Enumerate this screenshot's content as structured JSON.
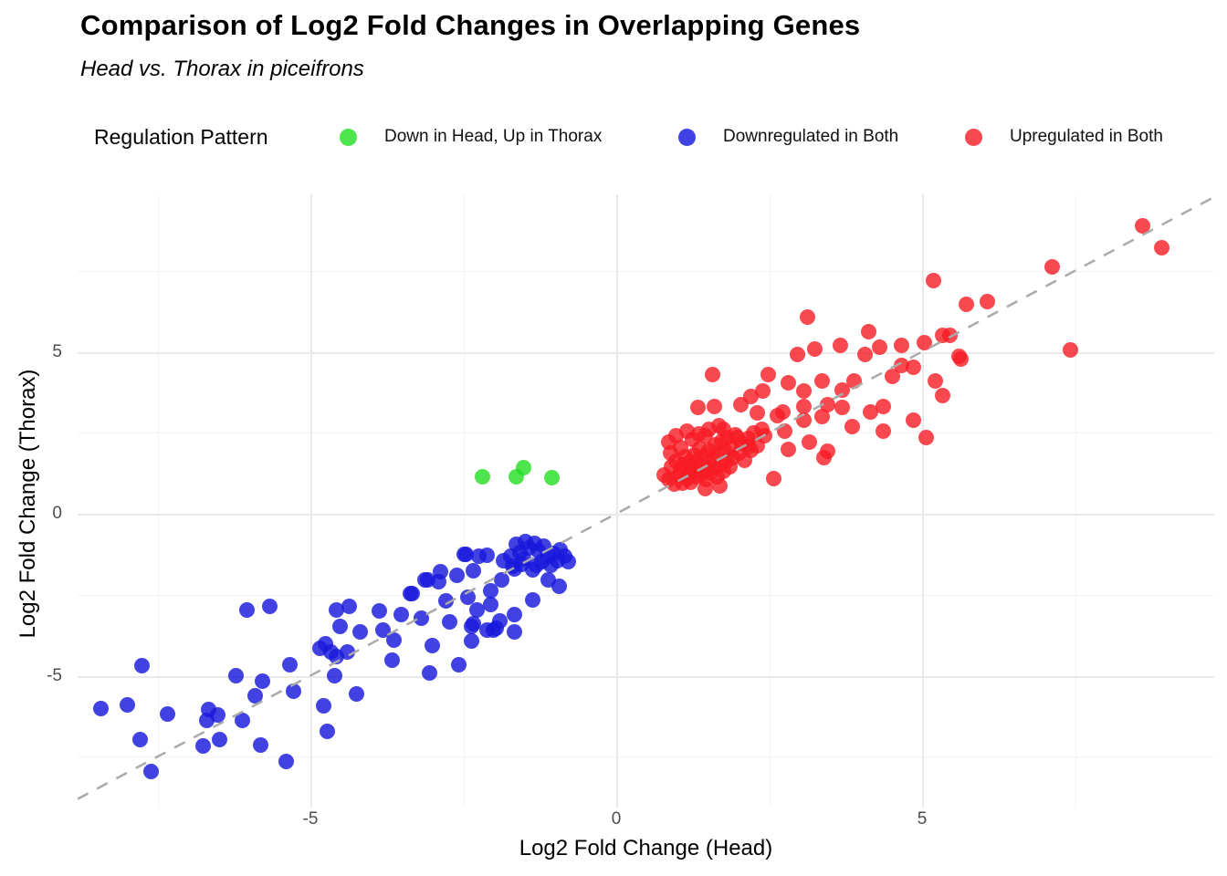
{
  "title": "Comparison of Log2 Fold Changes in Overlapping Genes",
  "subtitle": "Head vs. Thorax in piceifrons",
  "legend": {
    "title": "Regulation Pattern",
    "items": [
      {
        "label": "Down in Head, Up in Thorax",
        "color": "rgba(34,221,34,0.8)"
      },
      {
        "label": "Downregulated in Both",
        "color": "rgba(25,25,220,0.82)"
      },
      {
        "label": "Upregulated in Both",
        "color": "rgba(248,28,36,0.8)"
      }
    ]
  },
  "axes": {
    "x": {
      "label": "Log2 Fold Change (Head)",
      "major_ticks": [
        -5,
        0,
        5
      ],
      "minor_ticks": [
        -7.5,
        -2.5,
        2.5,
        7.5
      ]
    },
    "y": {
      "label": "Log2 Fold Change (Thorax)",
      "major_ticks": [
        -5,
        0,
        5
      ],
      "minor_ticks": [
        -7.5,
        -2.5,
        2.5,
        7.5
      ]
    }
  },
  "chart_data": {
    "type": "scatter",
    "title": "Comparison of Log2 Fold Changes in Overlapping Genes",
    "subtitle": "Head vs. Thorax in piceifrons",
    "xlabel": "Log2 Fold Change (Head)",
    "ylabel": "Log2 Fold Change (Thorax)",
    "xlim": [
      -8.8,
      9.8
    ],
    "ylim": [
      -9.1,
      9.9
    ],
    "grid": true,
    "legend_position": "top",
    "legend_title": "Regulation Pattern",
    "reference_line": {
      "type": "identity y=x",
      "style": "dashed",
      "color": "#aaaaaa"
    },
    "series": [
      {
        "name": "Down in Head, Up in Thorax",
        "color": "rgba(34,221,34,0.8)",
        "points": [
          [
            -2.18,
            1.15
          ],
          [
            -1.63,
            1.13
          ],
          [
            -1.52,
            1.42
          ],
          [
            -1.05,
            1.12
          ]
        ]
      },
      {
        "name": "Downregulated in Both",
        "color": "rgba(25,25,220,0.82)",
        "points": [
          [
            -8.42,
            -6.02
          ],
          [
            -8.0,
            -5.9
          ],
          [
            -7.75,
            -4.7
          ],
          [
            -7.79,
            -6.98
          ],
          [
            -7.33,
            -6.17
          ],
          [
            -7.61,
            -7.97
          ],
          [
            -6.22,
            -5.01
          ],
          [
            -5.78,
            -5.18
          ],
          [
            -5.9,
            -5.63
          ],
          [
            -6.67,
            -6.03
          ],
          [
            -6.52,
            -6.2
          ],
          [
            -6.69,
            -6.39
          ],
          [
            -6.12,
            -6.39
          ],
          [
            -6.76,
            -7.18
          ],
          [
            -6.48,
            -6.96
          ],
          [
            -5.82,
            -7.15
          ],
          [
            -5.33,
            -4.65
          ],
          [
            -5.27,
            -5.49
          ],
          [
            -5.39,
            -7.66
          ],
          [
            -6.04,
            -2.96
          ],
          [
            -5.66,
            -2.87
          ],
          [
            -4.79,
            -5.92
          ],
          [
            -4.72,
            -6.73
          ],
          [
            -4.85,
            -4.14
          ],
          [
            -4.66,
            -4.28
          ],
          [
            -4.6,
            -4.99
          ],
          [
            -4.25,
            -5.55
          ],
          [
            -4.58,
            -2.96
          ],
          [
            -4.36,
            -2.87
          ],
          [
            -4.51,
            -3.49
          ],
          [
            -4.58,
            -4.42
          ],
          [
            -4.4,
            -4.28
          ],
          [
            -4.75,
            -4.0
          ],
          [
            -4.18,
            -3.66
          ],
          [
            -3.88,
            -3.01
          ],
          [
            -3.81,
            -3.58
          ],
          [
            -3.63,
            -3.91
          ],
          [
            -3.36,
            -2.45
          ],
          [
            -3.51,
            -3.1
          ],
          [
            -3.09,
            -2.03
          ],
          [
            -3.01,
            -4.06
          ],
          [
            -3.66,
            -4.51
          ],
          [
            -3.06,
            -4.9
          ],
          [
            -3.13,
            -2.03
          ],
          [
            -2.91,
            -2.11
          ],
          [
            -3.18,
            -3.21
          ],
          [
            -3.33,
            -2.45
          ],
          [
            -2.57,
            -4.65
          ],
          [
            -2.36,
            -3.94
          ],
          [
            -2.01,
            -3.58
          ],
          [
            -1.97,
            -3.52
          ],
          [
            -1.67,
            -3.66
          ],
          [
            -2.34,
            -3.38
          ],
          [
            -2.12,
            -3.58
          ],
          [
            -2.72,
            -3.35
          ],
          [
            -2.87,
            -1.8
          ],
          [
            -2.61,
            -1.89
          ],
          [
            -2.49,
            -1.24
          ],
          [
            -2.12,
            -1.27
          ],
          [
            -2.34,
            -1.75
          ],
          [
            -2.79,
            -2.68
          ],
          [
            -2.43,
            -2.59
          ],
          [
            -2.06,
            -2.79
          ],
          [
            -1.91,
            -3.3
          ],
          [
            -2.27,
            -2.96
          ],
          [
            -2.36,
            -3.49
          ],
          [
            -2.46,
            -1.24
          ],
          [
            -2.24,
            -1.32
          ],
          [
            -2.06,
            -2.37
          ],
          [
            -1.37,
            -2.65
          ],
          [
            -1.87,
            -2.03
          ],
          [
            -1.67,
            -1.69
          ],
          [
            -1.52,
            -1.38
          ],
          [
            -1.3,
            -1.6
          ],
          [
            -1.12,
            -2.03
          ],
          [
            -0.94,
            -2.25
          ],
          [
            -1.67,
            -3.1
          ],
          [
            -1.49,
            -0.85
          ],
          [
            -1.34,
            -0.92
          ],
          [
            -1.19,
            -1.0
          ],
          [
            -1.64,
            -0.95
          ],
          [
            -1.27,
            -1.13
          ],
          [
            -1.12,
            -1.3
          ],
          [
            -1.42,
            -1.05
          ],
          [
            -1.57,
            -1.2
          ],
          [
            -1.72,
            -1.32
          ],
          [
            -1.22,
            -1.49
          ],
          [
            -1.07,
            -1.58
          ],
          [
            -1.37,
            -1.72
          ],
          [
            -1.55,
            -1.55
          ],
          [
            -1.7,
            -1.62
          ],
          [
            -1.85,
            -1.45
          ],
          [
            -0.97,
            -1.45
          ],
          [
            -0.85,
            -1.3
          ],
          [
            -0.92,
            -1.1
          ],
          [
            -1.02,
            -1.22
          ],
          [
            -0.78,
            -1.48
          ]
        ]
      },
      {
        "name": "Upregulated in Both",
        "color": "rgba(248,28,36,0.8)",
        "points": [
          [
            0.78,
            1.21
          ],
          [
            0.85,
            1.05
          ],
          [
            0.9,
            1.45
          ],
          [
            0.95,
            0.92
          ],
          [
            0.98,
            1.62
          ],
          [
            1.02,
            1.18
          ],
          [
            1.05,
            1.35
          ],
          [
            1.08,
            0.95
          ],
          [
            1.1,
            1.52
          ],
          [
            1.12,
            1.75
          ],
          [
            1.15,
            1.08
          ],
          [
            1.18,
            1.28
          ],
          [
            1.2,
            1.58
          ],
          [
            1.22,
            0.98
          ],
          [
            1.25,
            1.42
          ],
          [
            1.27,
            1.82
          ],
          [
            1.3,
            1.15
          ],
          [
            1.32,
            1.62
          ],
          [
            1.35,
            1.35
          ],
          [
            1.37,
            2.02
          ],
          [
            1.4,
            1.22
          ],
          [
            1.42,
            1.55
          ],
          [
            1.45,
            1.78
          ],
          [
            1.47,
            1.05
          ],
          [
            1.5,
            1.38
          ],
          [
            1.52,
            1.95
          ],
          [
            1.55,
            1.25
          ],
          [
            1.57,
            1.68
          ],
          [
            1.6,
            1.45
          ],
          [
            1.62,
            2.12
          ],
          [
            1.65,
            1.15
          ],
          [
            1.67,
            1.85
          ],
          [
            1.7,
            1.52
          ],
          [
            1.72,
            2.25
          ],
          [
            1.75,
            1.32
          ],
          [
            1.77,
            1.95
          ],
          [
            1.8,
            1.62
          ],
          [
            1.82,
            2.35
          ],
          [
            1.85,
            1.45
          ],
          [
            1.88,
            2.05
          ],
          [
            1.9,
            1.72
          ],
          [
            1.95,
            2.45
          ],
          [
            2.0,
            1.88
          ],
          [
            2.05,
            2.18
          ],
          [
            2.1,
            1.65
          ],
          [
            2.15,
            2.32
          ],
          [
            2.2,
            1.95
          ],
          [
            2.25,
            2.5
          ],
          [
            1.35,
            2.48
          ],
          [
            1.52,
            2.62
          ],
          [
            1.68,
            2.72
          ],
          [
            1.05,
            2.05
          ],
          [
            0.88,
            1.88
          ],
          [
            1.25,
            2.3
          ],
          [
            2.3,
            2.1
          ],
          [
            2.38,
            2.62
          ],
          [
            1.45,
            0.78
          ],
          [
            1.7,
            0.85
          ],
          [
            0.85,
            2.2
          ],
          [
            0.97,
            2.42
          ],
          [
            1.16,
            2.56
          ],
          [
            1.46,
            2.42
          ],
          [
            1.75,
            2.62
          ],
          [
            1.97,
            2.34
          ],
          [
            2.16,
            2.06
          ],
          [
            2.42,
            2.42
          ],
          [
            2.76,
            2.56
          ],
          [
            2.81,
            2.0
          ],
          [
            3.06,
            2.9
          ],
          [
            3.16,
            2.2
          ],
          [
            3.39,
            1.72
          ],
          [
            3.46,
            1.92
          ],
          [
            2.58,
            1.1
          ],
          [
            1.34,
            3.27
          ],
          [
            1.61,
            3.32
          ],
          [
            2.04,
            3.38
          ],
          [
            2.31,
            3.1
          ],
          [
            2.73,
            3.13
          ],
          [
            3.06,
            3.3
          ],
          [
            3.46,
            3.38
          ],
          [
            3.7,
            3.27
          ],
          [
            4.15,
            3.13
          ],
          [
            4.37,
            3.3
          ],
          [
            3.36,
            2.99
          ],
          [
            3.85,
            2.7
          ],
          [
            4.36,
            2.56
          ],
          [
            4.85,
            2.9
          ],
          [
            5.07,
            2.34
          ],
          [
            1.57,
            4.31
          ],
          [
            2.49,
            4.31
          ],
          [
            2.81,
            4.03
          ],
          [
            2.2,
            3.62
          ],
          [
            2.64,
            3.04
          ],
          [
            3.06,
            3.8
          ],
          [
            2.39,
            3.8
          ],
          [
            3.36,
            4.11
          ],
          [
            3.69,
            3.83
          ],
          [
            3.88,
            4.11
          ],
          [
            4.51,
            4.23
          ],
          [
            4.85,
            4.51
          ],
          [
            5.22,
            4.11
          ],
          [
            5.33,
            3.66
          ],
          [
            2.96,
            4.93
          ],
          [
            3.25,
            5.1
          ],
          [
            3.66,
            5.21
          ],
          [
            4.06,
            4.93
          ],
          [
            4.3,
            5.15
          ],
          [
            4.67,
            5.21
          ],
          [
            5.03,
            5.27
          ],
          [
            5.34,
            5.52
          ],
          [
            5.6,
            4.87
          ],
          [
            4.66,
            4.59
          ],
          [
            5.63,
            4.79
          ],
          [
            5.45,
            5.52
          ],
          [
            3.13,
            6.08
          ],
          [
            4.13,
            5.63
          ],
          [
            7.43,
            5.07
          ],
          [
            5.19,
            7.21
          ],
          [
            5.72,
            6.48
          ],
          [
            6.07,
            6.56
          ],
          [
            7.12,
            7.61
          ],
          [
            8.61,
            8.9
          ],
          [
            8.91,
            8.2
          ]
        ]
      }
    ]
  }
}
